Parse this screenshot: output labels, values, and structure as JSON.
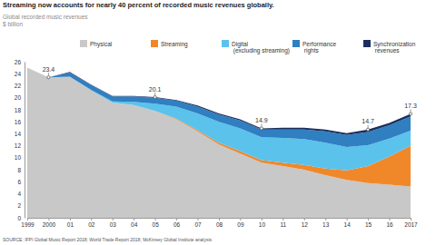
{
  "chart_data": {
    "type": "area",
    "stacked": true,
    "title": "Streaming now accounts for nearly 40 percent of recorded music revenues globally.",
    "subtitle": "Global recorded music revenues",
    "y_label": "$ billion",
    "source": "SOURCE: IFPI Global Music Report 2018; World Trade Report 2018; McKinsey Global Institute analysis",
    "legend": "top",
    "categories": [
      "1999",
      "2000",
      "01",
      "02",
      "03",
      "04",
      "05",
      "06",
      "07",
      "08",
      "09",
      "10",
      "11",
      "12",
      "13",
      "14",
      "15",
      "16",
      "2017"
    ],
    "series": [
      {
        "name": "Physical",
        "color": "#c8c8c8",
        "values": [
          25.0,
          23.4,
          23.5,
          21.2,
          19.2,
          18.8,
          17.8,
          16.4,
          14.4,
          12.2,
          10.7,
          9.2,
          8.6,
          8.0,
          7.1,
          6.3,
          5.8,
          5.5,
          5.2
        ]
      },
      {
        "name": "Streaming",
        "color": "#f0882a",
        "values": [
          0,
          0,
          0,
          0,
          0,
          0,
          0,
          0.1,
          0.2,
          0.3,
          0.4,
          0.4,
          0.6,
          0.8,
          1.1,
          1.6,
          2.8,
          4.7,
          6.8
        ]
      },
      {
        "name": "Digital (excluding streaming)",
        "color": "#5bc2ec",
        "values": [
          0,
          0,
          0,
          0.1,
          0.2,
          0.5,
          1.2,
          2.0,
          2.8,
          3.5,
          3.8,
          3.8,
          4.1,
          4.3,
          4.3,
          3.9,
          3.5,
          3.0,
          2.5
        ]
      },
      {
        "name": "Performance rights",
        "color": "#2f7fc1",
        "values": [
          0,
          0,
          0.7,
          0.8,
          0.8,
          0.9,
          1.0,
          1.0,
          1.1,
          1.2,
          1.3,
          1.3,
          1.4,
          1.6,
          1.9,
          2.0,
          2.2,
          2.2,
          2.4
        ]
      },
      {
        "name": "Synchronization revenues",
        "color": "#1b2f5e",
        "values": [
          0,
          0,
          0.1,
          0.1,
          0.1,
          0.1,
          0.1,
          0.1,
          0.2,
          0.2,
          0.2,
          0.2,
          0.3,
          0.3,
          0.3,
          0.3,
          0.4,
          0.4,
          0.4
        ]
      }
    ],
    "annotations": [
      {
        "category": "2000",
        "value": 23.4
      },
      {
        "category": "05",
        "value": 20.1
      },
      {
        "category": "10",
        "value": 14.9
      },
      {
        "category": "15",
        "value": 14.7
      },
      {
        "category": "2017",
        "value": 17.3
      }
    ],
    "ylim": [
      0,
      26
    ],
    "yticks": [
      0,
      2,
      4,
      6,
      8,
      10,
      12,
      14,
      16,
      18,
      20,
      22,
      24,
      26
    ]
  }
}
